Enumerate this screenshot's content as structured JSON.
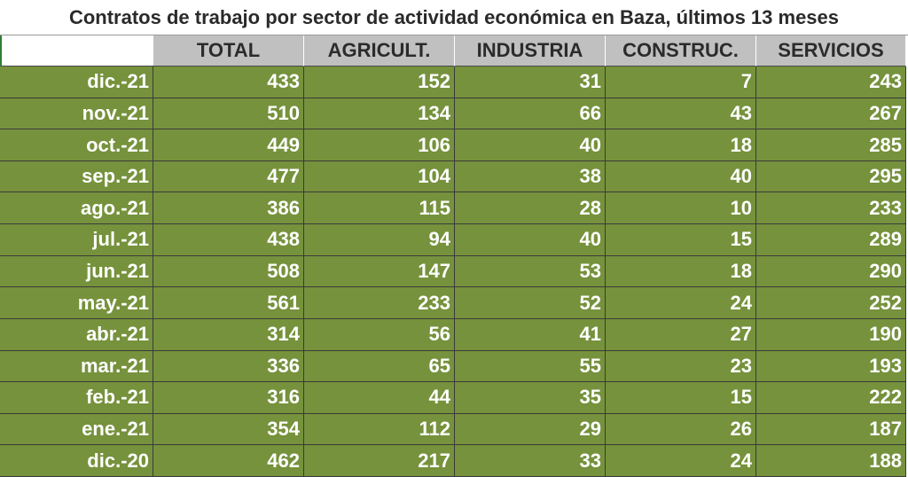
{
  "title": "Contratos de trabajo por sector de actividad económica en Baza, últimos 13 meses",
  "table": {
    "headers": [
      "TOTAL",
      "AGRICULT.",
      "INDUSTRIA",
      "CONSTRUC.",
      "SERVICIOS"
    ],
    "rows": [
      [
        "dic.-21",
        433,
        152,
        31,
        7,
        243
      ],
      [
        "nov.-21",
        510,
        134,
        66,
        43,
        267
      ],
      [
        "oct.-21",
        449,
        106,
        40,
        18,
        285
      ],
      [
        "sep.-21",
        477,
        104,
        38,
        40,
        295
      ],
      [
        "ago.-21",
        386,
        115,
        28,
        10,
        233
      ],
      [
        "jul.-21",
        438,
        94,
        40,
        15,
        289
      ],
      [
        "jun.-21",
        508,
        147,
        53,
        18,
        290
      ],
      [
        "may.-21",
        561,
        233,
        52,
        24,
        252
      ],
      [
        "abr.-21",
        314,
        56,
        41,
        27,
        190
      ],
      [
        "mar.-21",
        336,
        65,
        55,
        23,
        193
      ],
      [
        "feb.-21",
        316,
        44,
        35,
        15,
        222
      ],
      [
        "ene.-21",
        354,
        112,
        29,
        26,
        187
      ],
      [
        "dic.-20",
        462,
        217,
        33,
        24,
        188
      ]
    ]
  }
}
